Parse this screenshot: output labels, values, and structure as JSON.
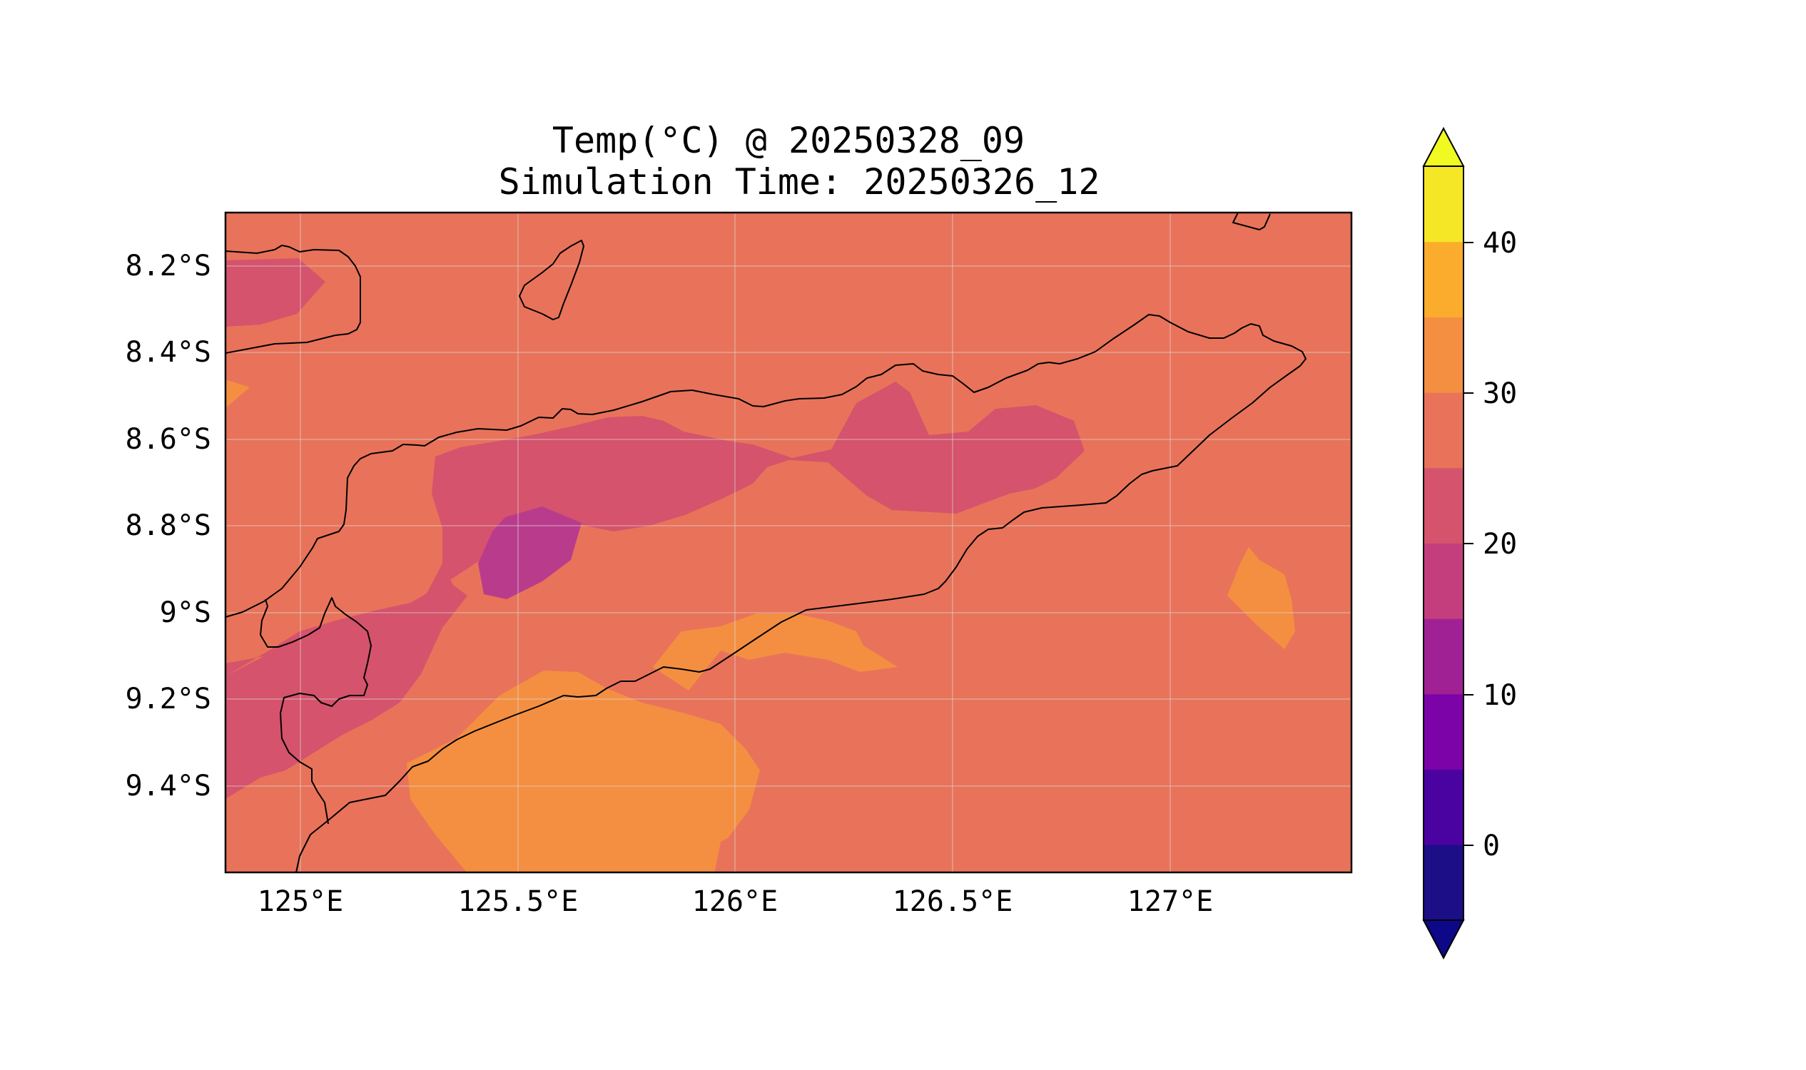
{
  "map": {
    "title": "Temp(°C) @ 20250328_09",
    "subtitle": "Simulation Time: 20250326_12",
    "lon_ticks": [
      "125°E",
      "125.5°E",
      "126°E",
      "126.5°E",
      "127°E"
    ],
    "lat_ticks": [
      "8.2°S",
      "8.4°S",
      "8.6°S",
      "8.8°S",
      "9°S",
      "9.2°S",
      "9.4°S"
    ],
    "lon_range": [
      124.82,
      127.42
    ],
    "lat_range": [
      -9.6,
      -8.07
    ],
    "grid": true,
    "colors": {
      "background_field": "#e8735a",
      "band_20_25": "#d5536c",
      "band_15_20": "#b93c8c",
      "band_30_35": "#f48f42",
      "band_35_40": "#fbac2d",
      "coastline": "#000000"
    }
  },
  "colorbar": {
    "ticks": [
      "40",
      "30",
      "20",
      "10",
      "0"
    ],
    "levels": [
      -5,
      0,
      5,
      10,
      15,
      20,
      25,
      30,
      35,
      40,
      45
    ],
    "colors": [
      "#1c0e86",
      "#4a02a0",
      "#7b03a8",
      "#a02194",
      "#c43e7e",
      "#d5536c",
      "#e8735a",
      "#f48f42",
      "#fbac2d",
      "#f5e626"
    ],
    "extend_min_color": "#0d0887",
    "extend_max_color": "#f0f921"
  }
}
